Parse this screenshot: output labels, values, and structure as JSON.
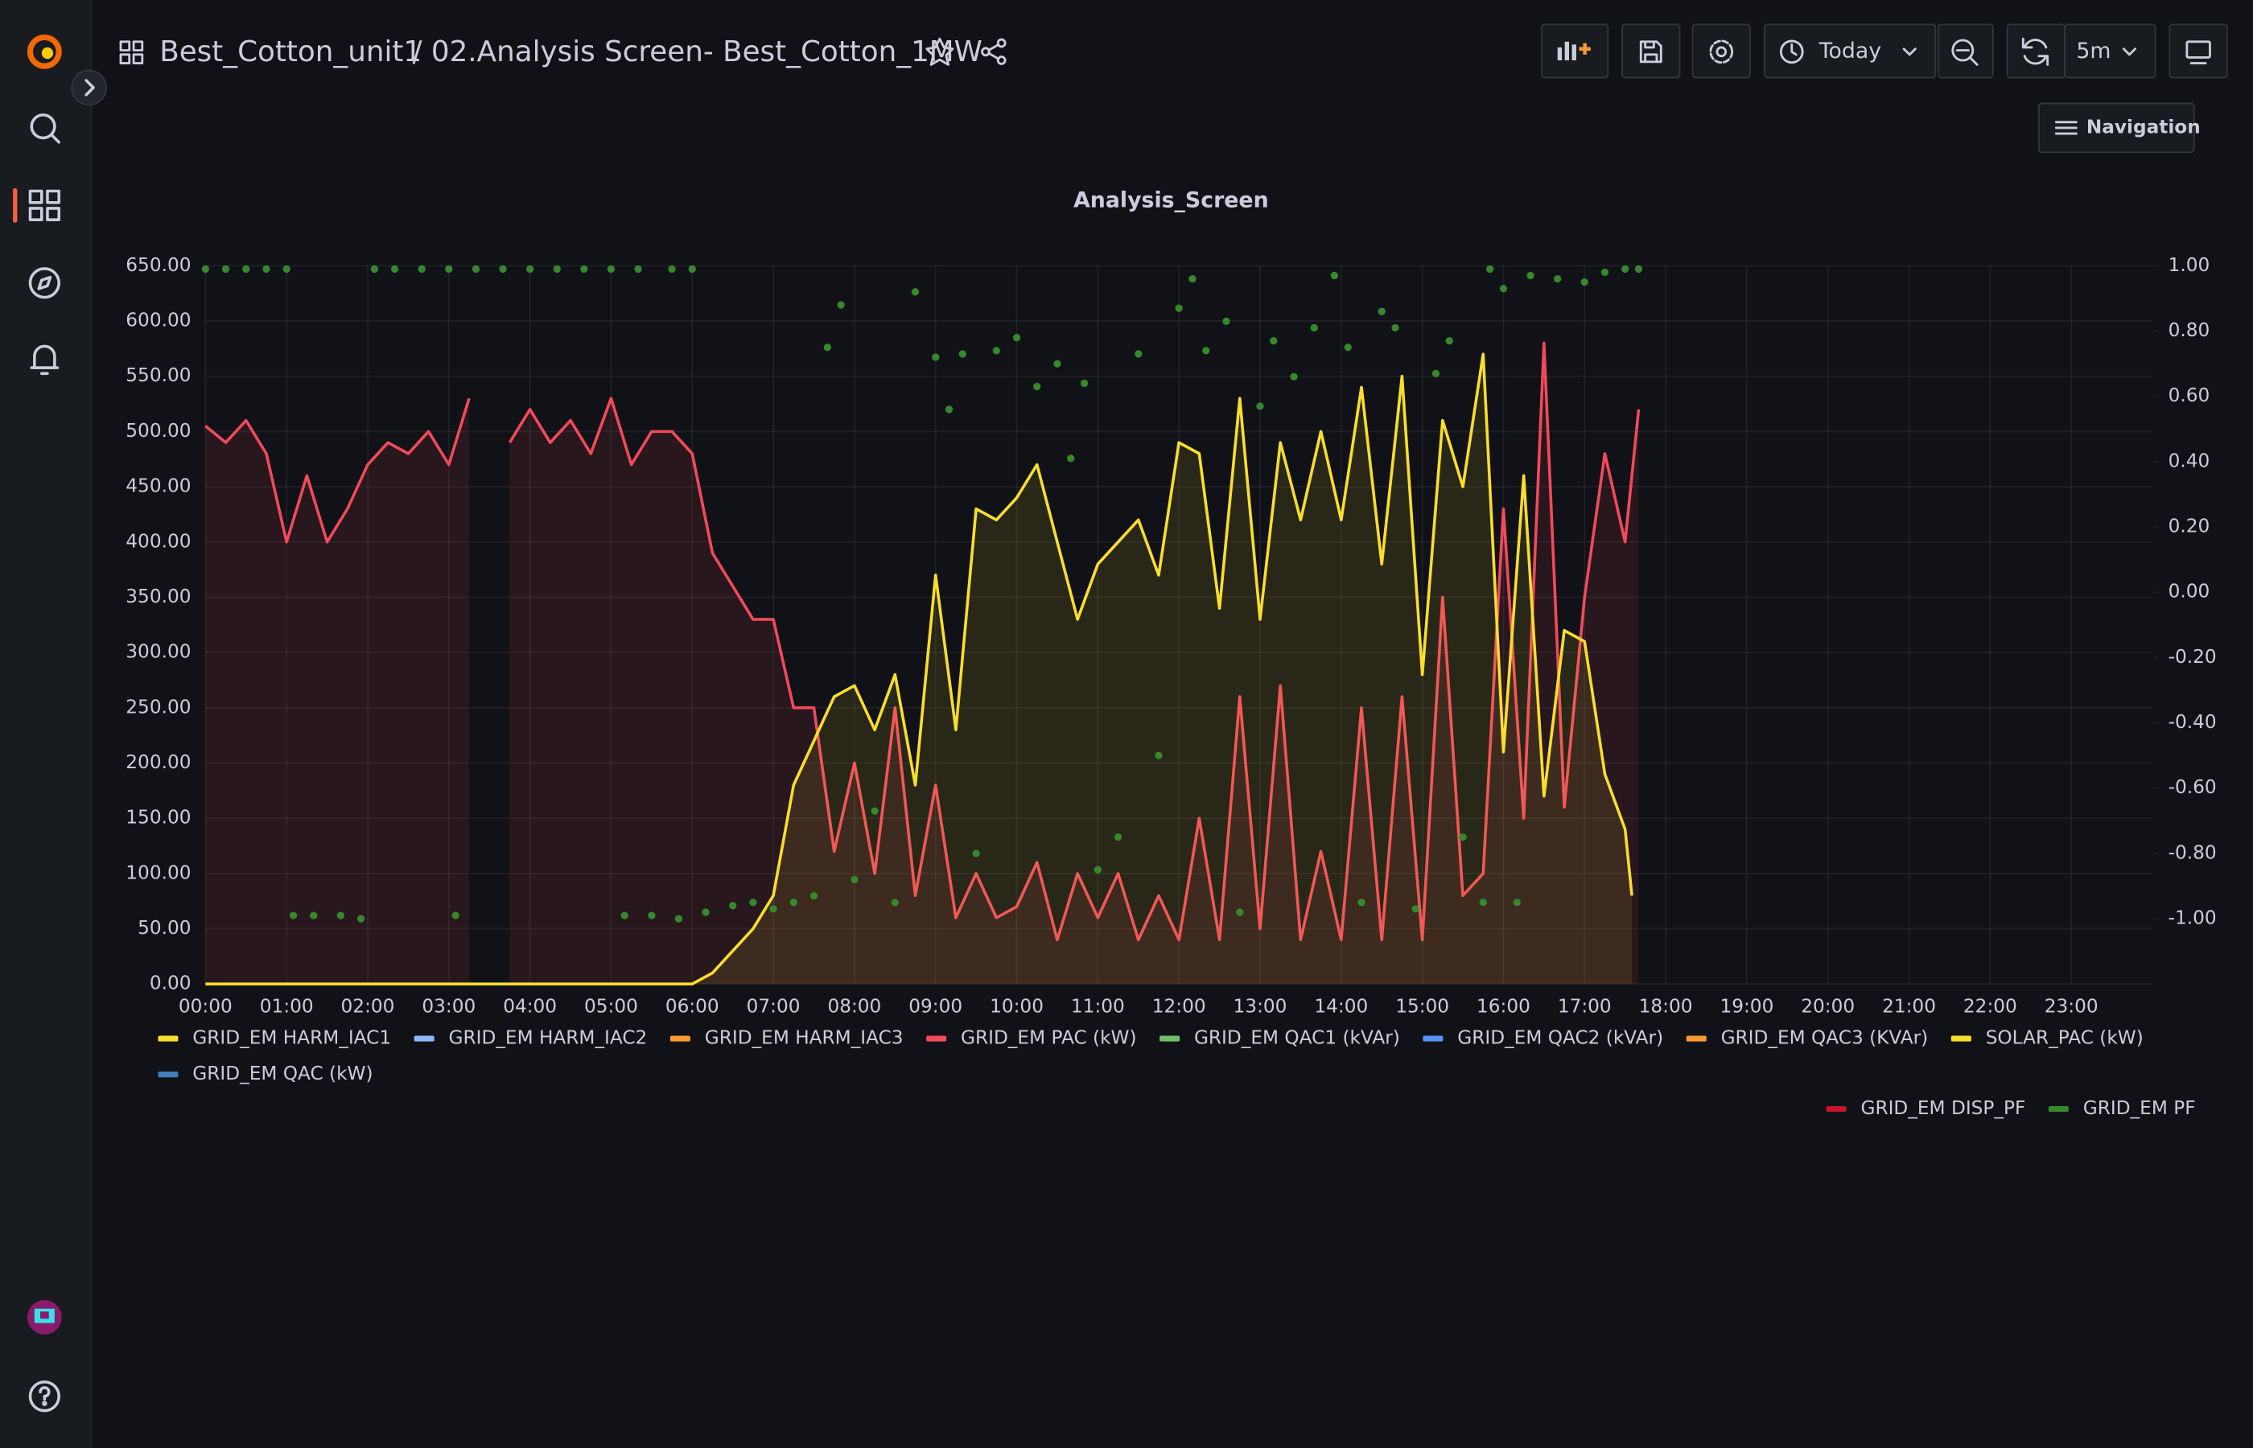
{
  "header": {
    "folder": "Best_Cotton_unit1",
    "title": "/ 02.Analysis Screen- Best_Cotton_1MW",
    "time_range": "Today",
    "refresh": "5m"
  },
  "navigation_button": "Navigation",
  "chart_data": {
    "type": "timeseries",
    "title": "Analysis_Screen",
    "xlim": [
      "00:00",
      "24:00"
    ],
    "xticks": [
      "00:00",
      "01:00",
      "02:00",
      "03:00",
      "04:00",
      "05:00",
      "06:00",
      "07:00",
      "08:00",
      "09:00",
      "10:00",
      "11:00",
      "12:00",
      "13:00",
      "14:00",
      "15:00",
      "16:00",
      "17:00",
      "18:00",
      "19:00",
      "20:00",
      "21:00",
      "22:00",
      "23:00"
    ],
    "ylim": [
      0,
      650
    ],
    "yticks": [
      {
        "value": 0,
        "label": "0.00"
      },
      {
        "value": 50,
        "label": "50.00"
      },
      {
        "value": 100,
        "label": "100.00"
      },
      {
        "value": 150,
        "label": "150.00"
      },
      {
        "value": 200,
        "label": "200.00"
      },
      {
        "value": 250,
        "label": "250.00"
      },
      {
        "value": 300,
        "label": "300.00"
      },
      {
        "value": 350,
        "label": "350.00"
      },
      {
        "value": 400,
        "label": "400.00"
      },
      {
        "value": 450,
        "label": "450.00"
      },
      {
        "value": 500,
        "label": "500.00"
      },
      {
        "value": 550,
        "label": "550.00"
      },
      {
        "value": 600,
        "label": "600.00"
      },
      {
        "value": 650,
        "label": "650.00"
      }
    ],
    "y2lim": [
      -1.2,
      1.0
    ],
    "y2ticks": [
      {
        "value": -1,
        "label": "-1.00"
      },
      {
        "value": -0.8,
        "label": "-0.80"
      },
      {
        "value": -0.6,
        "label": "-0.60"
      },
      {
        "value": -0.4,
        "label": "-0.40"
      },
      {
        "value": -0.2,
        "label": "-0.20"
      },
      {
        "value": 0,
        "label": "0.00"
      },
      {
        "value": 0.2,
        "label": "0.20"
      },
      {
        "value": 0.4,
        "label": "0.40"
      },
      {
        "value": 0.6,
        "label": "0.60"
      },
      {
        "value": 0.8,
        "label": "0.80"
      },
      {
        "value": 1,
        "label": "1.00"
      }
    ],
    "grid": true,
    "series": [
      {
        "name": "GRID_EM HARM_IAC1",
        "color": "#fade2a",
        "visible": false
      },
      {
        "name": "GRID_EM HARM_IAC2",
        "color": "#8ab8ff",
        "visible": false
      },
      {
        "name": "GRID_EM HARM_IAC3",
        "color": "#ff9830",
        "visible": false
      },
      {
        "name": "GRID_EM PAC (kW)",
        "color": "#f2495c",
        "visible": true,
        "type": "line",
        "fill": true,
        "x": [
          "00:00",
          "00:15",
          "00:30",
          "00:45",
          "01:00",
          "01:15",
          "01:30",
          "01:45",
          "02:00",
          "02:15",
          "02:30",
          "02:45",
          "03:00",
          "03:15",
          "03:30",
          "03:45",
          "04:00",
          "04:15",
          "04:30",
          "04:45",
          "05:00",
          "05:15",
          "05:30",
          "05:45",
          "06:00",
          "06:15",
          "06:30",
          "06:45",
          "07:00",
          "07:15",
          "07:30",
          "07:45",
          "08:00",
          "08:15",
          "08:30",
          "08:45",
          "09:00",
          "09:15",
          "09:30",
          "09:45",
          "10:00",
          "10:15",
          "10:30",
          "10:45",
          "11:00",
          "11:15",
          "11:30",
          "11:45",
          "12:00",
          "12:15",
          "12:30",
          "12:45",
          "13:00",
          "13:15",
          "13:30",
          "13:45",
          "14:00",
          "14:15",
          "14:30",
          "14:45",
          "15:00",
          "15:15",
          "15:30",
          "15:45",
          "16:00",
          "16:15",
          "16:30",
          "16:45",
          "17:00",
          "17:15",
          "17:30",
          "17:40"
        ],
        "values": [
          505,
          490,
          510,
          480,
          400,
          460,
          400,
          430,
          470,
          490,
          480,
          500,
          470,
          530,
          null,
          490,
          520,
          490,
          510,
          480,
          530,
          470,
          500,
          500,
          480,
          390,
          360,
          330,
          330,
          250,
          250,
          120,
          200,
          100,
          250,
          80,
          180,
          60,
          100,
          60,
          70,
          110,
          40,
          100,
          60,
          100,
          40,
          80,
          40,
          150,
          40,
          260,
          50,
          270,
          40,
          120,
          40,
          250,
          40,
          260,
          40,
          350,
          80,
          100,
          430,
          150,
          580,
          160,
          350,
          480,
          400,
          520
        ]
      },
      {
        "name": "GRID_EM QAC1 (kVAr)",
        "color": "#73bf69",
        "visible": false
      },
      {
        "name": "GRID_EM QAC2 (kVAr)",
        "color": "#5794f2",
        "visible": false
      },
      {
        "name": "GRID_EM QAC3 (KVAr)",
        "color": "#ff9830",
        "visible": false
      },
      {
        "name": "SOLAR_PAC (kW)",
        "color": "#fade2a",
        "visible": true,
        "type": "line",
        "fill": true,
        "x": [
          "00:00",
          "03:00",
          "06:00",
          "06:15",
          "06:30",
          "06:45",
          "07:00",
          "07:15",
          "07:30",
          "07:45",
          "08:00",
          "08:15",
          "08:30",
          "08:45",
          "09:00",
          "09:15",
          "09:30",
          "09:45",
          "10:00",
          "10:15",
          "10:30",
          "10:45",
          "11:00",
          "11:15",
          "11:30",
          "11:45",
          "12:00",
          "12:15",
          "12:30",
          "12:45",
          "13:00",
          "13:15",
          "13:30",
          "13:45",
          "14:00",
          "14:15",
          "14:30",
          "14:45",
          "15:00",
          "15:15",
          "15:30",
          "15:45",
          "16:00",
          "16:15",
          "16:30",
          "16:45",
          "17:00",
          "17:15",
          "17:30",
          "17:35"
        ],
        "values": [
          0,
          0,
          0,
          10,
          30,
          50,
          80,
          180,
          220,
          260,
          270,
          230,
          280,
          180,
          370,
          230,
          430,
          420,
          440,
          470,
          400,
          330,
          380,
          400,
          420,
          370,
          490,
          480,
          340,
          530,
          330,
          490,
          420,
          500,
          420,
          540,
          380,
          550,
          280,
          510,
          450,
          570,
          210,
          460,
          170,
          320,
          310,
          190,
          140,
          80
        ]
      },
      {
        "name": "GRID_EM QAC (kW)",
        "color": "#447ebc",
        "visible": false
      },
      {
        "name": "GRID_EM DISP_PF",
        "color": "#c4162a",
        "visible": false,
        "axis": "y2"
      },
      {
        "name": "GRID_EM PF",
        "color": "#37872d",
        "visible": true,
        "axis": "y2",
        "type": "points",
        "x": [
          "00:00",
          "00:15",
          "00:30",
          "00:45",
          "01:00",
          "01:05",
          "01:20",
          "01:40",
          "01:55",
          "02:05",
          "02:20",
          "02:40",
          "03:00",
          "03:05",
          "03:20",
          "03:40",
          "04:00",
          "04:20",
          "04:40",
          "05:00",
          "05:10",
          "05:20",
          "05:30",
          "05:45",
          "05:50",
          "06:00",
          "06:10",
          "06:30",
          "06:45",
          "07:00",
          "07:15",
          "07:30",
          "07:40",
          "07:50",
          "08:00",
          "08:15",
          "08:30",
          "08:45",
          "09:00",
          "09:10",
          "09:20",
          "09:30",
          "09:45",
          "10:00",
          "10:15",
          "10:30",
          "10:40",
          "10:50",
          "11:00",
          "11:15",
          "11:30",
          "11:45",
          "12:00",
          "12:10",
          "12:20",
          "12:35",
          "12:45",
          "13:00",
          "13:10",
          "13:25",
          "13:40",
          "13:55",
          "14:05",
          "14:15",
          "14:30",
          "14:40",
          "14:55",
          "15:10",
          "15:20",
          "15:30",
          "15:45",
          "15:50",
          "16:00",
          "16:10",
          "16:20",
          "16:40",
          "17:00",
          "17:15",
          "17:30",
          "17:40"
        ],
        "values": [
          0.99,
          0.99,
          0.99,
          0.99,
          0.99,
          -0.99,
          -0.99,
          -0.99,
          -1.0,
          0.99,
          0.99,
          0.99,
          0.99,
          -0.99,
          0.99,
          0.99,
          0.99,
          0.99,
          0.99,
          0.99,
          -0.99,
          0.99,
          -0.99,
          0.99,
          -1.0,
          0.99,
          -0.98,
          -0.96,
          -0.95,
          -0.97,
          -0.95,
          -0.93,
          0.75,
          0.88,
          -0.88,
          -0.67,
          -0.95,
          0.92,
          0.72,
          0.56,
          0.73,
          -0.8,
          0.74,
          0.78,
          0.63,
          0.7,
          0.41,
          0.64,
          -0.85,
          -0.75,
          0.73,
          -0.5,
          0.87,
          0.96,
          0.74,
          0.83,
          -0.98,
          0.57,
          0.77,
          0.66,
          0.81,
          0.97,
          0.75,
          -0.95,
          0.86,
          0.81,
          -0.97,
          0.67,
          0.77,
          -0.75,
          -0.95,
          0.99,
          0.93,
          -0.95,
          0.97,
          0.96,
          0.95,
          0.98,
          0.99,
          0.99
        ]
      }
    ]
  }
}
